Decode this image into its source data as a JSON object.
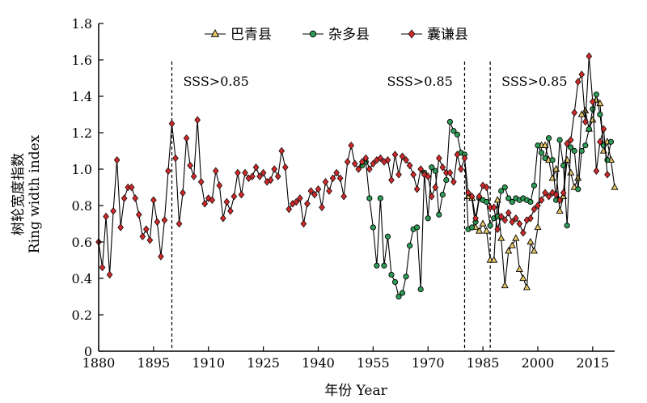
{
  "chart_data": {
    "type": "line",
    "xlabel": "年份 Year",
    "ylabel_cn": "树轮宽度指数",
    "ylabel_en": "Ring width index",
    "xlim": [
      1880,
      2021
    ],
    "ylim": [
      0,
      1.8
    ],
    "x_ticks": [
      1880,
      1895,
      1910,
      1925,
      1940,
      1955,
      1970,
      1985,
      2000,
      2015
    ],
    "y_ticks": [
      "0",
      "0.2",
      "0.4",
      "0.6",
      "0.8",
      "1.0",
      "1.2",
      "1.4",
      "1.6",
      "1.8"
    ],
    "legend_position": "top-center",
    "annotations": [
      {
        "x": 1900,
        "label": "SSS>0.85"
      },
      {
        "x": 1980,
        "label": "SSS>0.85"
      },
      {
        "x": 1987,
        "label": "SSS>0.85"
      }
    ],
    "series": [
      {
        "name": "巴青县",
        "marker": "triangle",
        "color": "#e8c968",
        "x_start": 1981,
        "values": [
          0.85,
          0.84,
          0.68,
          0.66,
          0.7,
          0.66,
          0.5,
          0.5,
          0.83,
          0.62,
          0.36,
          0.55,
          0.58,
          0.62,
          0.45,
          0.4,
          0.35,
          0.6,
          0.55,
          0.68,
          1.13,
          1.13,
          1.05,
          0.95,
          1.0,
          0.77,
          0.85,
          1.05,
          0.98,
          0.9,
          0.95,
          1.3,
          1.32,
          1.22,
          1.27,
          1.38,
          1.36,
          1.1,
          1.15,
          1.05,
          0.9
        ]
      },
      {
        "name": "杂多县",
        "marker": "circle",
        "color": "#2e9b57",
        "x_start": 1952,
        "values": [
          1.02,
          1.04,
          0.84,
          0.68,
          0.47,
          0.84,
          0.47,
          0.63,
          0.42,
          0.38,
          0.3,
          0.32,
          0.41,
          0.58,
          0.67,
          0.68,
          0.34,
          0.98,
          0.73,
          1.01,
          0.99,
          0.75,
          0.86,
          0.94,
          1.26,
          1.21,
          1.19,
          1.09,
          1.08,
          0.67,
          0.68,
          0.71,
          0.84,
          0.83,
          0.82,
          0.69,
          0.73,
          0.74,
          0.88,
          0.9,
          0.84,
          0.82,
          0.84,
          0.83,
          0.84,
          0.83,
          0.82,
          0.91,
          1.13,
          1.09,
          1.06,
          1.17,
          1.05,
          0.83,
          1.16,
          1.02,
          0.69,
          1.12,
          1.1,
          0.89,
          1.1,
          1.13,
          1.22,
          1.33,
          1.41,
          1.3,
          1.13,
          1.05,
          1.15
        ]
      },
      {
        "name": "囊谦县",
        "marker": "diamond",
        "color": "#cc2a2a",
        "x_start": 1880,
        "values": [
          0.6,
          0.46,
          0.74,
          0.42,
          0.77,
          1.05,
          0.68,
          0.84,
          0.9,
          0.9,
          0.84,
          0.75,
          0.63,
          0.67,
          0.61,
          0.83,
          0.71,
          0.52,
          0.72,
          0.99,
          1.25,
          1.06,
          0.7,
          0.87,
          1.17,
          1.02,
          0.96,
          1.27,
          0.93,
          0.81,
          0.84,
          0.83,
          0.99,
          0.91,
          0.73,
          0.82,
          0.77,
          0.85,
          0.98,
          0.86,
          0.98,
          0.95,
          0.96,
          1.01,
          0.96,
          0.98,
          0.93,
          0.94,
          1.0,
          0.96,
          1.1,
          1.01,
          0.78,
          0.81,
          0.82,
          0.84,
          0.7,
          0.81,
          0.88,
          0.86,
          0.89,
          0.79,
          0.93,
          0.88,
          0.95,
          0.98,
          0.95,
          0.85,
          1.04,
          1.13,
          1.03,
          1.0,
          1.04,
          1.06,
          1.0,
          1.03,
          1.05,
          1.06,
          1.04,
          1.05,
          0.94,
          1.08,
          0.97,
          1.07,
          1.05,
          1.02,
          0.97,
          0.89,
          1.0,
          0.97,
          0.96,
          0.85,
          0.9,
          1.06,
          1.01,
          0.98,
          0.98,
          0.93,
          1.08,
          1.0,
          1.06,
          0.87,
          0.85,
          0.73,
          0.85,
          0.91,
          0.9,
          0.79,
          0.79,
          0.67,
          0.74,
          0.72,
          0.76,
          0.71,
          0.73,
          0.7,
          0.65,
          0.72,
          0.73,
          0.78,
          0.8,
          0.83,
          0.87,
          0.85,
          0.87,
          0.86,
          0.83,
          0.87,
          1.14,
          1.16,
          1.31,
          1.48,
          1.52,
          1.26,
          1.62,
          1.37,
          0.99,
          1.15,
          1.22,
          0.97
        ]
      }
    ]
  }
}
